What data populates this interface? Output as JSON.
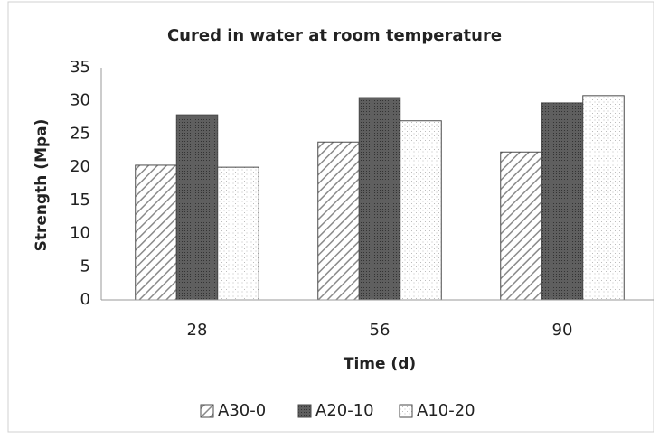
{
  "chart_data": {
    "type": "bar",
    "title": "Cured in water at room temperature",
    "x_label": "Time (d)",
    "y_label": "Strength (Mpa)",
    "categories": [
      "28",
      "56",
      "90"
    ],
    "series": [
      {
        "name": "A30-0",
        "color": "#8a8a8a",
        "pattern": "hatch",
        "values": [
          20.3,
          23.8,
          22.3
        ]
      },
      {
        "name": "A20-10",
        "color": "#5f5f5f",
        "pattern": "dense-dots",
        "values": [
          27.9,
          30.5,
          29.7
        ]
      },
      {
        "name": "A10-20",
        "color": "#bdbdbd",
        "pattern": "sparse-dots",
        "values": [
          20.0,
          27.0,
          30.8
        ]
      }
    ],
    "ylim": [
      0,
      35
    ],
    "yticks": [
      0,
      5,
      10,
      15,
      20,
      25,
      30,
      35
    ],
    "grid": false,
    "legend": "bottom"
  }
}
